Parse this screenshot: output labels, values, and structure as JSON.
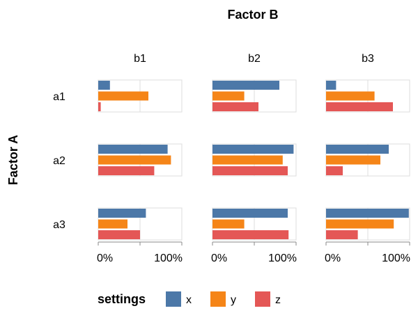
{
  "chart_data": {
    "type": "bar",
    "orientation": "horizontal",
    "title": "Factor B",
    "row_title": "Factor A",
    "columns": [
      "b1",
      "b2",
      "b3"
    ],
    "rows": [
      "a1",
      "a2",
      "a3"
    ],
    "x_ticks": [
      "0%",
      "100%"
    ],
    "xlim": [
      0,
      1
    ],
    "grid": true,
    "legend": {
      "title": "settings",
      "position": "bottom",
      "items": [
        {
          "label": "x",
          "color": "#4c78a8"
        },
        {
          "label": "y",
          "color": "#f58518"
        },
        {
          "label": "z",
          "color": "#e45756"
        }
      ]
    },
    "cells": [
      {
        "row": "a1",
        "col": "b1",
        "values": {
          "x": 0.14,
          "y": 0.6,
          "z": 0.03
        }
      },
      {
        "row": "a1",
        "col": "b2",
        "values": {
          "x": 0.8,
          "y": 0.38,
          "z": 0.55
        }
      },
      {
        "row": "a1",
        "col": "b3",
        "values": {
          "x": 0.12,
          "y": 0.58,
          "z": 0.8
        }
      },
      {
        "row": "a2",
        "col": "b1",
        "values": {
          "x": 0.83,
          "y": 0.87,
          "z": 0.67
        }
      },
      {
        "row": "a2",
        "col": "b2",
        "values": {
          "x": 0.97,
          "y": 0.84,
          "z": 0.9
        }
      },
      {
        "row": "a2",
        "col": "b3",
        "values": {
          "x": 0.75,
          "y": 0.65,
          "z": 0.2
        }
      },
      {
        "row": "a3",
        "col": "b1",
        "values": {
          "x": 0.57,
          "y": 0.35,
          "z": 0.5
        }
      },
      {
        "row": "a3",
        "col": "b2",
        "values": {
          "x": 0.9,
          "y": 0.38,
          "z": 0.91
        }
      },
      {
        "row": "a3",
        "col": "b3",
        "values": {
          "x": 0.99,
          "y": 0.81,
          "z": 0.38
        }
      }
    ]
  }
}
